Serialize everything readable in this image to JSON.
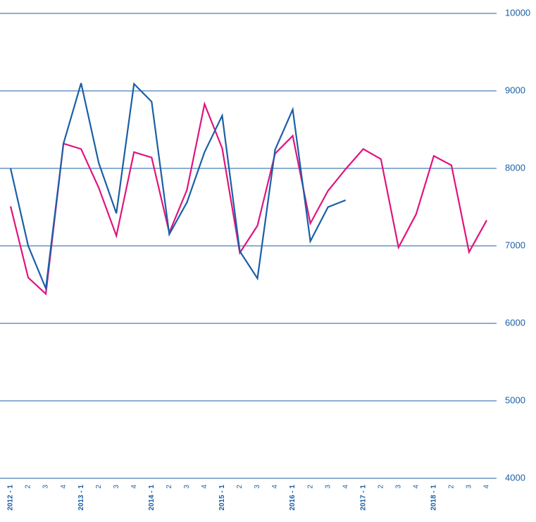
{
  "chart_data": {
    "type": "line",
    "categories": [
      "2012 - 1",
      "2",
      "3",
      "4",
      "2013 - 1",
      "2",
      "3",
      "4",
      "2014 - 1",
      "2",
      "3",
      "4",
      "2015 - 1",
      "2",
      "3",
      "4",
      "2016 - 1",
      "2",
      "3",
      "4",
      "2017 - 1",
      "2",
      "3",
      "4",
      "2018 - 1",
      "2",
      "3",
      "4"
    ],
    "series": [
      {
        "color": "#e0147e",
        "values": [
          7510,
          6590,
          6380,
          8320,
          8250,
          7750,
          7130,
          8210,
          8140,
          7170,
          7720,
          8830,
          8260,
          6910,
          7260,
          8190,
          8420,
          7290,
          7710,
          7990,
          8250,
          8120,
          6980,
          7410,
          8160,
          8040,
          6920,
          7330
        ]
      },
      {
        "color": "#1b5fa6",
        "values": [
          8000,
          7000,
          6450,
          8320,
          9100,
          8070,
          7420,
          9090,
          8860,
          7150,
          7560,
          8210,
          8680,
          6930,
          6580,
          8240,
          8760,
          7060,
          7500,
          7590,
          null,
          null,
          null,
          null,
          null,
          null,
          null,
          null
        ]
      }
    ],
    "ylim": [
      4000,
      10000
    ],
    "yticks": [
      4000,
      5000,
      6000,
      7000,
      8000,
      9000,
      10000
    ],
    "grid": true,
    "grid_color": "#1b5fa6"
  }
}
